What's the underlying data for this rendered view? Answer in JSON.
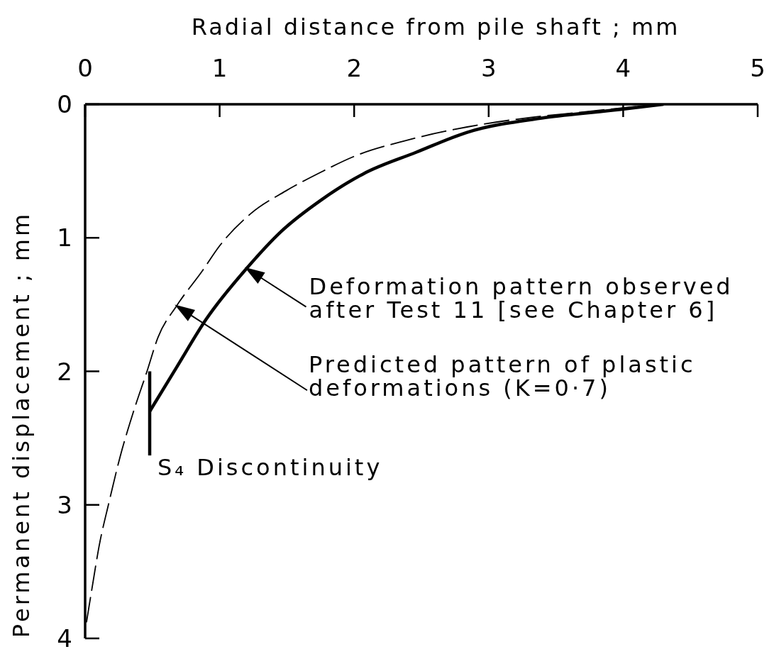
{
  "chart_data": {
    "type": "line",
    "xlabel": "Radial distance from pile shaft ; mm",
    "ylabel": "Permanent displacement ; mm",
    "xlim": [
      0,
      5
    ],
    "xticks": [
      0,
      1,
      2,
      3,
      4,
      5
    ],
    "ylim": [
      4,
      0
    ],
    "yticks": [
      0,
      1,
      2,
      3,
      4
    ],
    "series": [
      {
        "color": "#000000",
        "line_style": "dashed",
        "x": [
          0.01,
          0.06,
          0.1,
          0.18,
          0.26,
          0.36,
          0.46,
          0.54,
          0.68,
          0.87,
          1.0,
          1.23,
          1.49,
          1.75,
          2.0,
          2.39,
          2.84,
          3.3,
          3.68,
          4.07,
          4.3
        ],
        "values": [
          3.88,
          3.57,
          3.33,
          2.97,
          2.64,
          2.3,
          2.0,
          1.75,
          1.51,
          1.25,
          1.06,
          0.82,
          0.65,
          0.51,
          0.39,
          0.27,
          0.17,
          0.1,
          0.06,
          0.02,
          0
        ]
      },
      {
        "color": "#000000",
        "line_style": "solid",
        "x": [
          0.48,
          0.68,
          0.9,
          1.2,
          1.46,
          1.75,
          2.07,
          2.46,
          2.84,
          3.42,
          3.97,
          4.3
        ],
        "values": [
          2.3,
          1.97,
          1.61,
          1.23,
          0.95,
          0.72,
          0.52,
          0.36,
          0.21,
          0.1,
          0.04,
          0
        ]
      },
      {
        "color": "#000000",
        "line_style": "solid",
        "x": [
          0.48,
          0.48
        ],
        "values": [
          2.0,
          2.63
        ]
      }
    ],
    "annotations": [
      {
        "text": "Deformation pattern observed\nafter Test 11 [see Chapter 6]",
        "x": 1.2,
        "y": 1.23
      },
      "Predicted pattern of plastic\ndeformations (K=0·7)",
      {
        "text": "S₄ Discontinuity",
        "x": 0.48,
        "y": 2.63
      }
    ]
  }
}
